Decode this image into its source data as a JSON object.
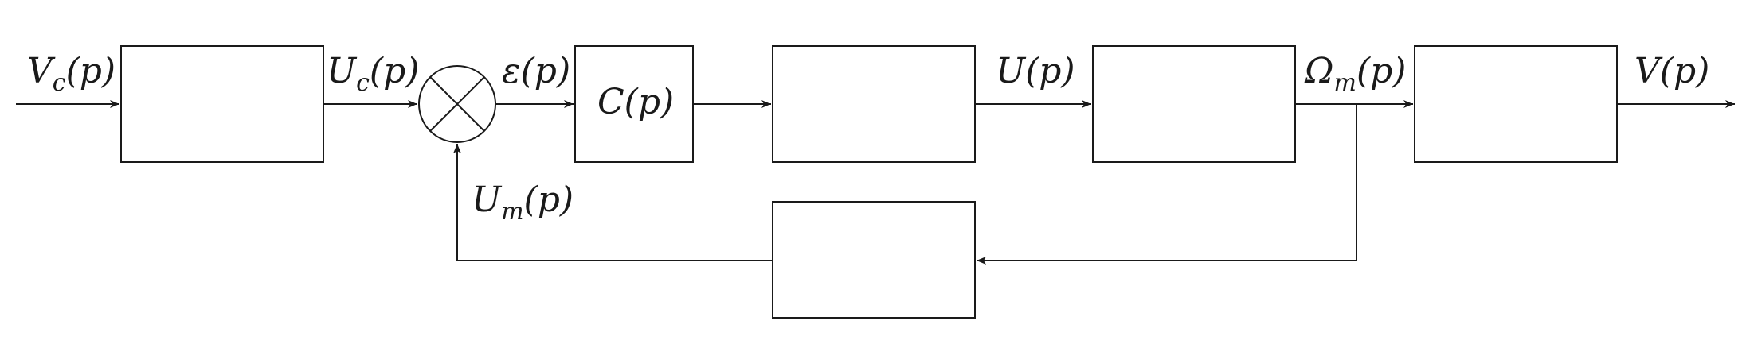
{
  "signals": {
    "vc": {
      "main": "V",
      "sub": "c",
      "arg": "(p)"
    },
    "uc": {
      "main": "U",
      "sub": "c",
      "arg": "(p)"
    },
    "eps": {
      "main": "ε",
      "arg": "(p)"
    },
    "u": {
      "main": "U",
      "arg": "(p)"
    },
    "omega": {
      "main": "Ω",
      "sub": "m",
      "arg": "(p)"
    },
    "v": {
      "main": "V",
      "arg": "(p)"
    },
    "um": {
      "main": "U",
      "sub": "m",
      "arg": "(p)"
    }
  },
  "blocks": {
    "corrector": {
      "main": "C",
      "arg": "(p)"
    }
  }
}
